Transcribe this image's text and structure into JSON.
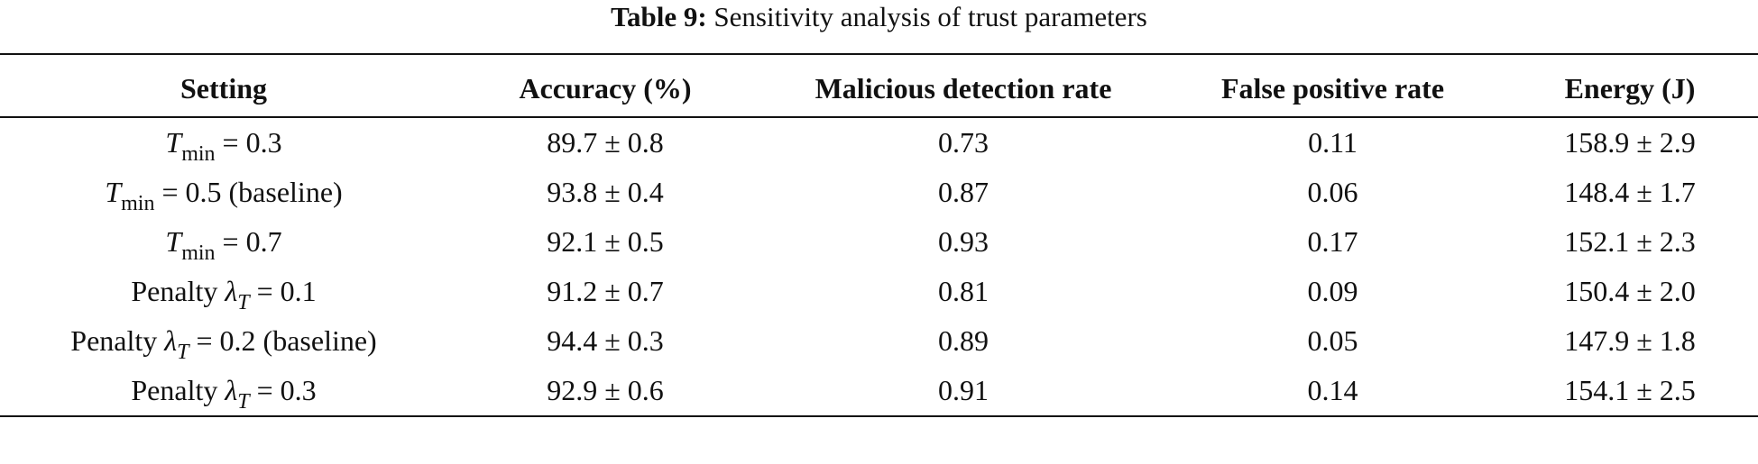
{
  "caption": {
    "label": "Table 9:",
    "text": "Sensitivity analysis of trust parameters"
  },
  "table": {
    "headers": [
      "Setting",
      "Accuracy (%)",
      "Malicious detection rate",
      "False positive rate",
      "Energy (J)"
    ],
    "rows": [
      {
        "setting": {
          "prefix": "",
          "symbol": "T",
          "subscript": "min",
          "rest": " = 0.3"
        },
        "accuracy": "89.7 ± 0.8",
        "detection": "0.73",
        "fpr": "0.11",
        "energy": "158.9 ± 2.9"
      },
      {
        "setting": {
          "prefix": "",
          "symbol": "T",
          "subscript": "min",
          "rest": " = 0.5 (baseline)"
        },
        "accuracy": "93.8 ± 0.4",
        "detection": "0.87",
        "fpr": "0.06",
        "energy": "148.4 ± 1.7"
      },
      {
        "setting": {
          "prefix": "",
          "symbol": "T",
          "subscript": "min",
          "rest": " = 0.7"
        },
        "accuracy": "92.1 ± 0.5",
        "detection": "0.93",
        "fpr": "0.17",
        "energy": "152.1 ± 2.3"
      },
      {
        "setting": {
          "prefix": "Penalty ",
          "symbol": "λ",
          "subscript": "T",
          "rest": " = 0.1"
        },
        "accuracy": "91.2 ± 0.7",
        "detection": "0.81",
        "fpr": "0.09",
        "energy": "150.4 ± 2.0"
      },
      {
        "setting": {
          "prefix": "Penalty ",
          "symbol": "λ",
          "subscript": "T",
          "rest": " = 0.2 (baseline)"
        },
        "accuracy": "94.4 ± 0.3",
        "detection": "0.89",
        "fpr": "0.05",
        "energy": "147.9 ± 1.8"
      },
      {
        "setting": {
          "prefix": "Penalty ",
          "symbol": "λ",
          "subscript": "T",
          "rest": " = 0.3"
        },
        "accuracy": "92.9 ± 0.6",
        "detection": "0.91",
        "fpr": "0.14",
        "energy": "154.1 ± 2.5"
      }
    ]
  }
}
